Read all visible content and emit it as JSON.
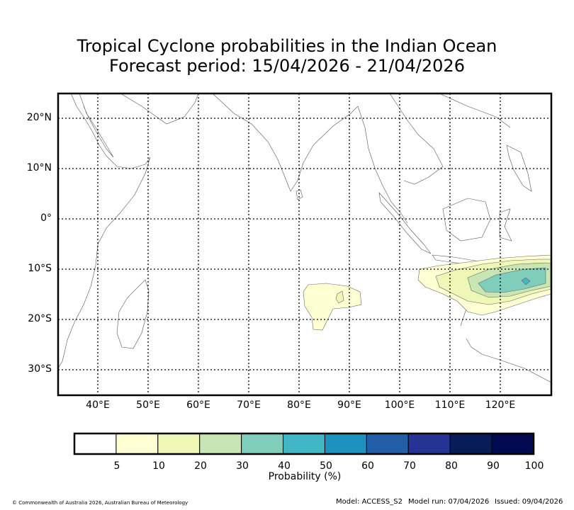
{
  "title": {
    "line1": "Tropical Cyclone probabilities in the Indian Ocean",
    "line2": "Forecast period: 15/04/2026 - 21/04/2026"
  },
  "map": {
    "lat_labels": [
      "20°N",
      "10°N",
      "0°",
      "10°S",
      "20°S",
      "30°S"
    ],
    "lon_labels": [
      "40°E",
      "50°E",
      "60°E",
      "70°E",
      "80°E",
      "90°E",
      "100°E",
      "110°E",
      "120°E"
    ],
    "gridlines": true,
    "probability_regions": [
      {
        "area": "central Indian Ocean near 85°E 15°S",
        "max_probability_pct": 20
      },
      {
        "area": "off north-west Australia 105°E–130°E 10°S–20°S",
        "max_probability_pct": 50
      }
    ]
  },
  "colorbar": {
    "ticks": [
      "5",
      "10",
      "20",
      "30",
      "40",
      "50",
      "60",
      "70",
      "80",
      "90",
      "100"
    ],
    "colors": [
      "#ffffff",
      "#ffffd4",
      "#eef7b5",
      "#c8e6b4",
      "#7fcdbb",
      "#41b6c4",
      "#1d91c0",
      "#225ea8",
      "#253494",
      "#081d58",
      "#040a52"
    ],
    "label": "Probability (%)"
  },
  "footer": {
    "copyright": "© Commonwealth of Australia 2026, Australian Bureau of Meteorology",
    "model": "Model: ACCESS_S2",
    "model_run": "Model run: 07/04/2026",
    "issued": "Issued: 09/04/2026"
  }
}
